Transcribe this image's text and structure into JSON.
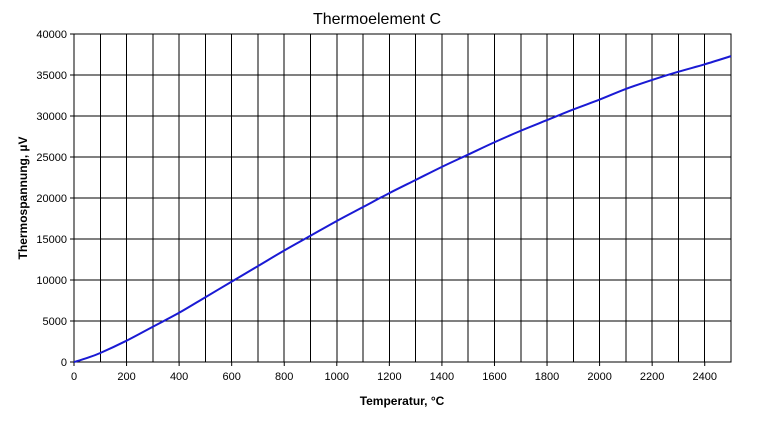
{
  "chart_data": {
    "type": "line",
    "title": "Thermoelement C",
    "xlabel": "Temperatur, °C",
    "ylabel": "Thermospannung, µV",
    "xlim": [
      0,
      2500
    ],
    "ylim": [
      0,
      40000
    ],
    "xticks": [
      0,
      200,
      400,
      600,
      800,
      1000,
      1200,
      1400,
      1600,
      1800,
      2000,
      2200,
      2400
    ],
    "xtick_labels": [
      "0",
      "200",
      "400",
      "600",
      "800",
      "1000",
      "1200",
      "1400",
      "1600",
      "1800",
      "2000",
      "2200",
      "2400"
    ],
    "x_gridlines": [
      0,
      100,
      200,
      300,
      400,
      500,
      600,
      700,
      800,
      900,
      1000,
      1100,
      1200,
      1300,
      1400,
      1500,
      1600,
      1700,
      1800,
      1900,
      2000,
      2100,
      2200,
      2300,
      2400
    ],
    "yticks": [
      0,
      5000,
      10000,
      15000,
      20000,
      25000,
      30000,
      35000,
      40000
    ],
    "ytick_labels": [
      "0",
      "5000",
      "10000",
      "15000",
      "20000",
      "25000",
      "30000",
      "35000",
      "40000"
    ],
    "grid": true,
    "series": [
      {
        "color": "#1a1ad4",
        "x": [
          0,
          50,
          100,
          200,
          300,
          400,
          500,
          600,
          700,
          800,
          900,
          1000,
          1100,
          1200,
          1300,
          1400,
          1500,
          1600,
          1700,
          1800,
          1900,
          2000,
          2100,
          2200,
          2300,
          2400,
          2500
        ],
        "y": [
          0,
          500,
          1100,
          2600,
          4300,
          6000,
          7900,
          9800,
          11700,
          13600,
          15400,
          17200,
          18900,
          20600,
          22200,
          23800,
          25300,
          26800,
          28200,
          29500,
          30800,
          32000,
          33300,
          34400,
          35400,
          36300,
          37300
        ]
      }
    ]
  }
}
